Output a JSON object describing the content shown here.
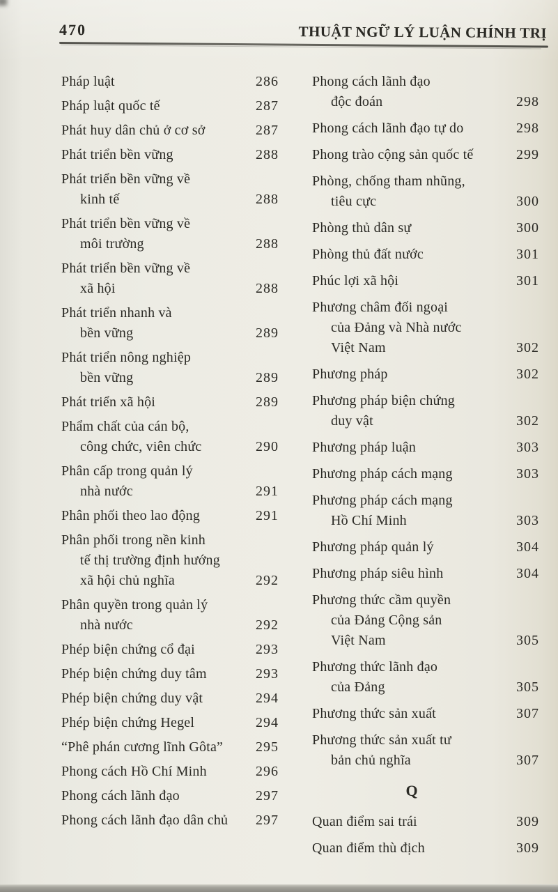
{
  "header": {
    "page_number": "470",
    "title": "THUẬT NGỮ LÝ LUẬN CHÍNH TRỊ"
  },
  "columns": [
    {
      "items": [
        {
          "lines": [
            "Pháp luật"
          ],
          "page": "286"
        },
        {
          "lines": [
            "Pháp luật quốc tế"
          ],
          "page": "287"
        },
        {
          "lines": [
            "Phát huy dân chủ ở cơ sở"
          ],
          "page": "287"
        },
        {
          "lines": [
            "Phát triển bền vững"
          ],
          "page": "288"
        },
        {
          "lines": [
            "Phát triển bền vững về",
            "kinh tế"
          ],
          "page": "288"
        },
        {
          "lines": [
            "Phát triển bền vững về",
            "môi trường"
          ],
          "page": "288"
        },
        {
          "lines": [
            "Phát triển bền vững về",
            "xã hội"
          ],
          "page": "288"
        },
        {
          "lines": [
            "Phát triển nhanh và",
            "bền vững"
          ],
          "page": "289"
        },
        {
          "lines": [
            "Phát triển nông nghiệp",
            "bền vững"
          ],
          "page": "289"
        },
        {
          "lines": [
            "Phát triển xã hội"
          ],
          "page": "289"
        },
        {
          "lines": [
            "Phẩm chất của cán bộ,",
            "công chức, viên chức"
          ],
          "page": "290"
        },
        {
          "lines": [
            "Phân cấp trong quản lý",
            "nhà nước"
          ],
          "page": "291"
        },
        {
          "lines": [
            "Phân phối theo lao động"
          ],
          "page": "291"
        },
        {
          "lines": [
            "Phân phối trong nền kinh",
            "tế thị trường định hướng",
            "xã hội chủ nghĩa"
          ],
          "page": "292"
        },
        {
          "lines": [
            "Phân quyền trong quản lý",
            "nhà nước"
          ],
          "page": "292"
        },
        {
          "lines": [
            "Phép biện chứng cổ đại"
          ],
          "page": "293"
        },
        {
          "lines": [
            "Phép biện chứng duy tâm"
          ],
          "page": "293"
        },
        {
          "lines": [
            "Phép biện chứng duy vật"
          ],
          "page": "294"
        },
        {
          "lines": [
            "Phép biện chứng Hegel"
          ],
          "page": "294"
        },
        {
          "lines": [
            "“Phê phán cương lĩnh Gôta”"
          ],
          "page": "295"
        },
        {
          "lines": [
            "Phong cách Hồ Chí Minh"
          ],
          "page": "296"
        },
        {
          "lines": [
            "Phong cách lãnh đạo"
          ],
          "page": "297"
        },
        {
          "lines": [
            "Phong cách lãnh đạo dân chủ"
          ],
          "page": "297"
        }
      ]
    },
    {
      "items": [
        {
          "lines": [
            "Phong cách lãnh đạo",
            "độc đoán"
          ],
          "page": "298"
        },
        {
          "lines": [
            "Phong cách lãnh đạo tự do"
          ],
          "page": "298"
        },
        {
          "lines": [
            "Phong trào cộng sản quốc tế"
          ],
          "page": "299"
        },
        {
          "lines": [
            "Phòng, chống tham nhũng,",
            "tiêu cực"
          ],
          "page": "300"
        },
        {
          "lines": [
            "Phòng thủ dân sự"
          ],
          "page": "300"
        },
        {
          "lines": [
            "Phòng thủ đất nước"
          ],
          "page": "301"
        },
        {
          "lines": [
            "Phúc lợi xã hội"
          ],
          "page": "301"
        },
        {
          "lines": [
            "Phương châm đối ngoại",
            "của Đảng và Nhà nước",
            "Việt Nam"
          ],
          "page": "302"
        },
        {
          "lines": [
            "Phương pháp"
          ],
          "page": "302"
        },
        {
          "lines": [
            "Phương pháp biện chứng",
            "duy vật"
          ],
          "page": "302"
        },
        {
          "lines": [
            "Phương pháp luận"
          ],
          "page": "303"
        },
        {
          "lines": [
            "Phương pháp cách mạng"
          ],
          "page": "303"
        },
        {
          "lines": [
            "Phương pháp cách mạng",
            "Hồ Chí Minh"
          ],
          "page": "303"
        },
        {
          "lines": [
            "Phương pháp quản lý"
          ],
          "page": "304"
        },
        {
          "lines": [
            "Phương pháp siêu hình"
          ],
          "page": "304"
        },
        {
          "lines": [
            "Phương thức cầm quyền",
            "của Đảng Cộng sản",
            "Việt Nam"
          ],
          "page": "305"
        },
        {
          "lines": [
            "Phương thức lãnh đạo",
            "của Đảng"
          ],
          "page": "305"
        },
        {
          "lines": [
            "Phương thức sản xuất"
          ],
          "page": "307"
        },
        {
          "lines": [
            "Phương thức sản xuất tư",
            "bản chủ nghĩa"
          ],
          "page": "307"
        },
        {
          "section": "Q"
        },
        {
          "lines": [
            "Quan điểm sai trái"
          ],
          "page": "309"
        },
        {
          "lines": [
            "Quan điểm thù địch"
          ],
          "page": "309"
        }
      ]
    }
  ]
}
